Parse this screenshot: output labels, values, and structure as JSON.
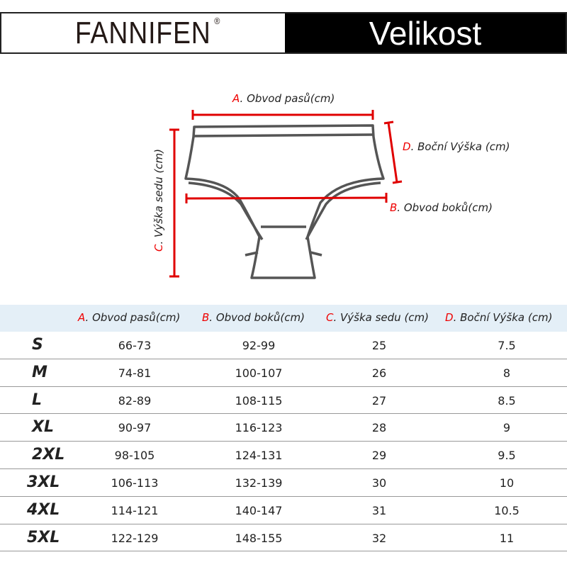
{
  "header": {
    "brand": "FANNIFEN",
    "registered": "®",
    "title": "Velikost"
  },
  "diagram": {
    "label_a": {
      "key": "A",
      "text": ". Obvod pasů(cm)"
    },
    "label_b": {
      "key": "B",
      "text": ".  Obvod boků(cm)"
    },
    "label_c": {
      "key": "C",
      "text": ". Výška sedu (cm)"
    },
    "label_d": {
      "key": "D",
      "text": ". Boční Výška (cm)"
    },
    "measure_color": "#e00000"
  },
  "table": {
    "headers": [
      {
        "key": "A",
        "text": ". Obvod pasů(cm)"
      },
      {
        "key": "B",
        "text": ".  Obvod boků(cm)"
      },
      {
        "key": "C",
        "text": ". Výška sedu (cm)"
      },
      {
        "key": "D",
        "text": ". Boční Výška (cm)"
      }
    ],
    "rows": [
      {
        "size": "S",
        "a": "66-73",
        "b": "92-99",
        "c": "25",
        "d": "7.5"
      },
      {
        "size": "M",
        "a": "74-81",
        "b": "100-107",
        "c": "26",
        "d": "8"
      },
      {
        "size": "L",
        "a": "82-89",
        "b": "108-115",
        "c": "27",
        "d": "8.5"
      },
      {
        "size": "XL",
        "a": "90-97",
        "b": "116-123",
        "c": "28",
        "d": "9"
      },
      {
        "size": "2XL",
        "a": "98-105",
        "b": "124-131",
        "c": "29",
        "d": "9.5"
      },
      {
        "size": "3XL",
        "a": "106-113",
        "b": "132-139",
        "c": "30",
        "d": "10"
      },
      {
        "size": "4XL",
        "a": "114-121",
        "b": "140-147",
        "c": "31",
        "d": "10.5"
      },
      {
        "size": "5XL",
        "a": "122-129",
        "b": "148-155",
        "c": "32",
        "d": "11"
      }
    ]
  }
}
